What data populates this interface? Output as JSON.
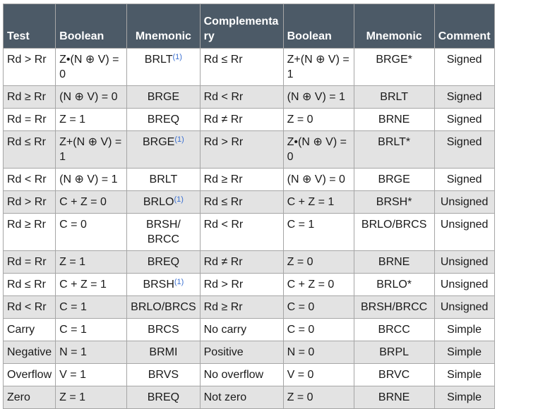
{
  "headers": [
    "Test",
    "Boolean",
    "Mnemonic",
    "Complementary",
    "Boolean",
    "Mnemonic",
    "Comment"
  ],
  "rows": [
    {
      "test": "Rd > Rr",
      "boolean": "Z•(N ⊕ V) = 0",
      "mnemonic": "BRLT",
      "mnemonic_note": "(1)",
      "complementary": "Rd ≤ Rr",
      "boolean2": "Z+(N ⊕ V) = 1",
      "mnemonic2": "BRGE*",
      "comment": "Signed"
    },
    {
      "test": "Rd ≥ Rr",
      "boolean": "(N ⊕ V) = 0",
      "mnemonic": "BRGE",
      "mnemonic_note": "",
      "complementary": "Rd < Rr",
      "boolean2": "(N ⊕ V) = 1",
      "mnemonic2": "BRLT",
      "comment": "Signed"
    },
    {
      "test": "Rd = Rr",
      "boolean": "Z = 1",
      "mnemonic": "BREQ",
      "mnemonic_note": "",
      "complementary": "Rd ≠ Rr",
      "boolean2": "Z = 0",
      "mnemonic2": "BRNE",
      "comment": "Signed"
    },
    {
      "test": "Rd ≤ Rr",
      "boolean": "Z+(N ⊕ V) = 1",
      "mnemonic": "BRGE",
      "mnemonic_note": "(1)",
      "complementary": "Rd > Rr",
      "boolean2": "Z•(N ⊕ V) = 0",
      "mnemonic2": "BRLT*",
      "comment": "Signed"
    },
    {
      "test": "Rd < Rr",
      "boolean": "(N ⊕ V) = 1",
      "mnemonic": "BRLT",
      "mnemonic_note": "",
      "complementary": "Rd ≥ Rr",
      "boolean2": "(N ⊕ V) = 0",
      "mnemonic2": "BRGE",
      "comment": "Signed"
    },
    {
      "test": "Rd > Rr",
      "boolean": "C + Z = 0",
      "mnemonic": "BRLO",
      "mnemonic_note": "(1)",
      "complementary": "Rd ≤ Rr",
      "boolean2": "C + Z = 1",
      "mnemonic2": "BRSH*",
      "comment": "Unsigned"
    },
    {
      "test": "Rd ≥ Rr",
      "boolean": "C = 0",
      "mnemonic": "BRSH/ BRCC",
      "mnemonic_note": "",
      "complementary": "Rd < Rr",
      "boolean2": "C = 1",
      "mnemonic2": "BRLO/BRCS",
      "comment": "Unsigned"
    },
    {
      "test": "Rd = Rr",
      "boolean": "Z = 1",
      "mnemonic": "BREQ",
      "mnemonic_note": "",
      "complementary": "Rd ≠ Rr",
      "boolean2": "Z = 0",
      "mnemonic2": "BRNE",
      "comment": "Unsigned"
    },
    {
      "test": "Rd ≤ Rr",
      "boolean": "C + Z = 1",
      "mnemonic": "BRSH",
      "mnemonic_note": "(1)",
      "complementary": "Rd > Rr",
      "boolean2": "C + Z = 0",
      "mnemonic2": "BRLO*",
      "comment": "Unsigned"
    },
    {
      "test": "Rd < Rr",
      "boolean": "C = 1",
      "mnemonic": "BRLO/BRCS",
      "mnemonic_note": "",
      "complementary": "Rd ≥ Rr",
      "boolean2": "C = 0",
      "mnemonic2": "BRSH/BRCC",
      "comment": "Unsigned"
    },
    {
      "test": "Carry",
      "boolean": "C = 1",
      "mnemonic": "BRCS",
      "mnemonic_note": "",
      "complementary": "No carry",
      "boolean2": "C = 0",
      "mnemonic2": "BRCC",
      "comment": "Simple"
    },
    {
      "test": "Negative",
      "boolean": "N = 1",
      "mnemonic": "BRMI",
      "mnemonic_note": "",
      "complementary": "Positive",
      "boolean2": "N = 0",
      "mnemonic2": "BRPL",
      "comment": "Simple"
    },
    {
      "test": "Overflow",
      "boolean": "V = 1",
      "mnemonic": "BRVS",
      "mnemonic_note": "",
      "complementary": "No overflow",
      "boolean2": "V = 0",
      "mnemonic2": "BRVC",
      "comment": "Simple"
    },
    {
      "test": "Zero",
      "boolean": "Z = 1",
      "mnemonic": "BREQ",
      "mnemonic_note": "",
      "complementary": "Not zero",
      "boolean2": "Z = 0",
      "mnemonic2": "BRNE",
      "comment": "Simple"
    }
  ]
}
